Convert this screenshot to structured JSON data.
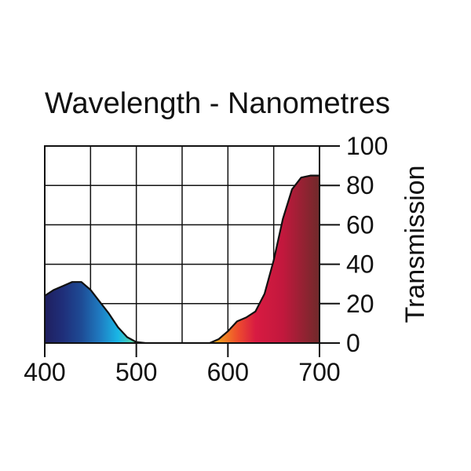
{
  "chart_data": {
    "type": "area",
    "title": "Wavelength - Nanometres",
    "xlabel": "Wavelength - Nanometres",
    "ylabel": "Transmission",
    "xlim": [
      400,
      700
    ],
    "ylim": [
      0,
      100
    ],
    "x_ticks": [
      400,
      500,
      600,
      700
    ],
    "x_tick_labels": [
      "400",
      "500",
      "600",
      "700"
    ],
    "y_ticks": [
      0,
      20,
      40,
      60,
      80,
      100
    ],
    "y_tick_labels": [
      "0",
      "20",
      "40",
      "60",
      "80",
      "100"
    ],
    "grid": true,
    "series": [
      {
        "name": "Transmission",
        "x": [
          400,
          410,
          420,
          430,
          440,
          450,
          460,
          470,
          480,
          490,
          500,
          510,
          520,
          530,
          540,
          550,
          560,
          570,
          580,
          590,
          600,
          610,
          620,
          630,
          640,
          650,
          660,
          670,
          680,
          690,
          700
        ],
        "values": [
          24,
          27,
          29,
          31,
          31,
          27,
          21,
          15,
          8,
          3,
          0.5,
          0,
          0,
          0,
          0,
          0,
          0,
          0,
          0,
          2,
          6,
          11,
          13,
          16,
          25,
          42,
          63,
          78,
          84,
          85,
          85
        ]
      }
    ],
    "gradient_stops": [
      {
        "nm": 400,
        "color": "#1f1f5f"
      },
      {
        "nm": 420,
        "color": "#1f2f7a"
      },
      {
        "nm": 440,
        "color": "#1e4b95"
      },
      {
        "nm": 460,
        "color": "#1f7ac0"
      },
      {
        "nm": 480,
        "color": "#19b6e6"
      },
      {
        "nm": 495,
        "color": "#4fd0b0"
      },
      {
        "nm": 505,
        "color": "#8ad24a"
      },
      {
        "nm": 520,
        "color": "#a9d92a"
      },
      {
        "nm": 560,
        "color": "#f1e000"
      },
      {
        "nm": 590,
        "color": "#f39a1f"
      },
      {
        "nm": 610,
        "color": "#ee4e2d"
      },
      {
        "nm": 630,
        "color": "#d81b42"
      },
      {
        "nm": 660,
        "color": "#c2183d"
      },
      {
        "nm": 700,
        "color": "#6f2a2a"
      }
    ]
  }
}
